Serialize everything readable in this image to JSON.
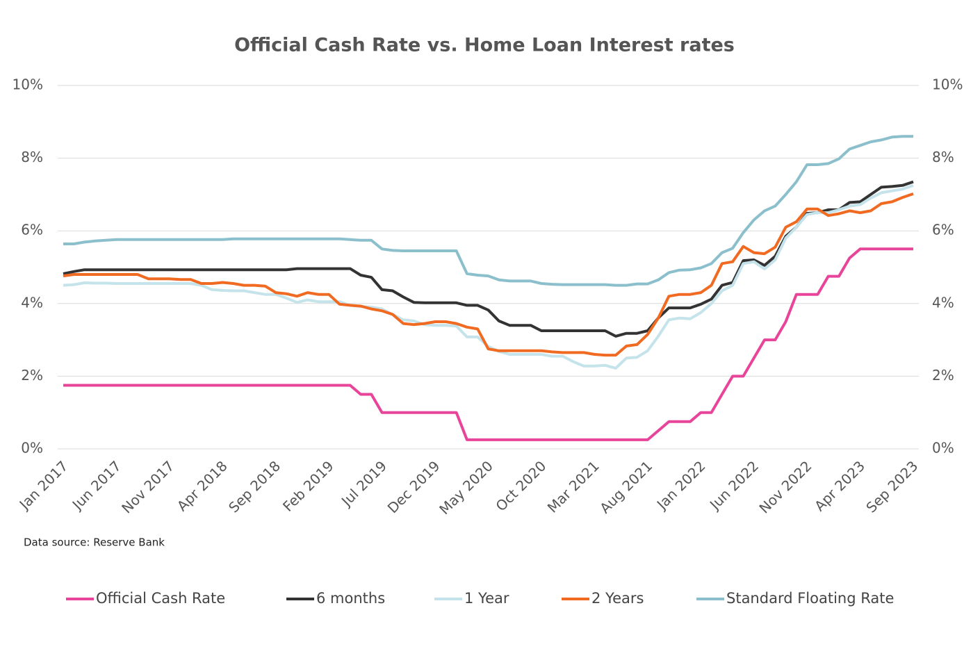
{
  "chart_data": {
    "type": "line",
    "title": "Official Cash Rate vs. Home Loan Interest rates",
    "source": "Data source:  Reserve Bank",
    "categories": [
      "Jan 2017",
      null,
      null,
      null,
      null,
      "Jun 2017",
      null,
      null,
      null,
      null,
      "Nov 2017",
      null,
      null,
      null,
      null,
      "Apr 2018",
      null,
      null,
      null,
      null,
      "Sep 2018",
      null,
      null,
      null,
      null,
      "Feb 2019",
      null,
      null,
      null,
      null,
      "Jul 2019",
      null,
      null,
      null,
      null,
      "Dec 2019",
      null,
      null,
      null,
      null,
      "May 2020",
      null,
      null,
      null,
      null,
      "Oct 2020",
      null,
      null,
      null,
      null,
      "Mar 2021",
      null,
      null,
      null,
      null,
      "Aug 2021",
      null,
      null,
      null,
      null,
      "Jan 2022",
      null,
      null,
      null,
      null,
      "Jun 2022",
      null,
      null,
      null,
      null,
      "Nov 2022",
      null,
      null,
      null,
      null,
      "Apr 2023",
      null,
      null,
      null,
      null,
      "Sep 2023"
    ],
    "series": [
      {
        "name": "Official Cash Rate",
        "color": "#e8459a",
        "values": [
          1.75,
          1.75,
          1.75,
          1.75,
          1.75,
          1.75,
          1.75,
          1.75,
          1.75,
          1.75,
          1.75,
          1.75,
          1.75,
          1.75,
          1.75,
          1.75,
          1.75,
          1.75,
          1.75,
          1.75,
          1.75,
          1.75,
          1.75,
          1.75,
          1.75,
          1.75,
          1.75,
          1.75,
          1.5,
          1.5,
          1,
          1,
          1,
          1,
          1,
          1,
          1,
          1,
          0.25,
          0.25,
          0.25,
          0.25,
          0.25,
          0.25,
          0.25,
          0.25,
          0.25,
          0.25,
          0.25,
          0.25,
          0.25,
          0.25,
          0.25,
          0.25,
          0.25,
          0.25,
          0.5,
          0.75,
          0.75,
          0.75,
          1,
          1,
          1.5,
          2,
          2,
          2.5,
          3,
          3,
          3.5,
          4.25,
          4.25,
          4.25,
          4.75,
          4.75,
          5.25,
          5.5,
          5.5,
          5.5,
          5.5,
          5.5,
          5.5
        ]
      },
      {
        "name": "6 months",
        "color": "#333333",
        "values": [
          4.82,
          4.88,
          4.93,
          4.93,
          4.93,
          4.93,
          4.93,
          4.93,
          4.93,
          4.93,
          4.93,
          4.93,
          4.93,
          4.93,
          4.93,
          4.93,
          4.93,
          4.93,
          4.93,
          4.93,
          4.93,
          4.93,
          4.96,
          4.96,
          4.96,
          4.96,
          4.96,
          4.96,
          4.78,
          4.72,
          4.38,
          4.35,
          4.18,
          4.03,
          4.02,
          4.02,
          4.02,
          4.02,
          3.95,
          3.95,
          3.82,
          3.52,
          3.4,
          3.4,
          3.4,
          3.25,
          3.25,
          3.25,
          3.25,
          3.25,
          3.25,
          3.25,
          3.1,
          3.18,
          3.18,
          3.25,
          3.6,
          3.88,
          3.88,
          3.88,
          3.98,
          4.12,
          4.5,
          4.58,
          5.18,
          5.2,
          5.05,
          5.3,
          5.85,
          6.1,
          6.48,
          6.5,
          6.58,
          6.58,
          6.78,
          6.8,
          7.0,
          7.2,
          7.22,
          7.25,
          7.35
        ]
      },
      {
        "name": "1 Year",
        "color": "#c5e3ea",
        "values": [
          4.5,
          4.52,
          4.57,
          4.56,
          4.56,
          4.55,
          4.55,
          4.55,
          4.55,
          4.55,
          4.55,
          4.55,
          4.55,
          4.5,
          4.38,
          4.36,
          4.35,
          4.35,
          4.3,
          4.25,
          4.25,
          4.15,
          4.03,
          4.1,
          4.05,
          4.05,
          4.05,
          3.95,
          3.92,
          3.9,
          3.85,
          3.7,
          3.55,
          3.52,
          3.42,
          3.4,
          3.4,
          3.38,
          3.08,
          3.08,
          2.82,
          2.68,
          2.6,
          2.6,
          2.6,
          2.6,
          2.55,
          2.55,
          2.4,
          2.28,
          2.28,
          2.3,
          2.22,
          2.5,
          2.52,
          2.7,
          3.1,
          3.55,
          3.6,
          3.58,
          3.75,
          4.0,
          4.35,
          4.5,
          5.1,
          5.15,
          4.95,
          5.2,
          5.8,
          6.1,
          6.45,
          6.5,
          6.5,
          6.58,
          6.68,
          6.72,
          6.9,
          7.05,
          7.1,
          7.15,
          7.25
        ]
      },
      {
        "name": "2 Years",
        "color": "#f06a22",
        "values": [
          4.76,
          4.8,
          4.8,
          4.8,
          4.8,
          4.8,
          4.8,
          4.8,
          4.68,
          4.68,
          4.68,
          4.66,
          4.66,
          4.55,
          4.55,
          4.58,
          4.55,
          4.5,
          4.5,
          4.48,
          4.3,
          4.27,
          4.2,
          4.3,
          4.25,
          4.25,
          3.98,
          3.95,
          3.93,
          3.85,
          3.8,
          3.7,
          3.45,
          3.42,
          3.45,
          3.5,
          3.5,
          3.45,
          3.35,
          3.3,
          2.75,
          2.7,
          2.7,
          2.7,
          2.7,
          2.7,
          2.67,
          2.65,
          2.65,
          2.65,
          2.6,
          2.58,
          2.58,
          2.83,
          2.87,
          3.15,
          3.6,
          4.2,
          4.25,
          4.25,
          4.3,
          4.5,
          5.1,
          5.15,
          5.57,
          5.4,
          5.37,
          5.55,
          6.1,
          6.25,
          6.6,
          6.6,
          6.42,
          6.47,
          6.55,
          6.5,
          6.55,
          6.75,
          6.8,
          6.92,
          7.02
        ]
      },
      {
        "name": "Standard Floating Rate",
        "color": "#8bbfcc",
        "values": [
          5.64,
          5.64,
          5.69,
          5.72,
          5.74,
          5.76,
          5.76,
          5.76,
          5.76,
          5.76,
          5.76,
          5.76,
          5.76,
          5.76,
          5.76,
          5.76,
          5.78,
          5.78,
          5.78,
          5.78,
          5.78,
          5.78,
          5.78,
          5.78,
          5.78,
          5.78,
          5.78,
          5.76,
          5.74,
          5.74,
          5.5,
          5.46,
          5.45,
          5.45,
          5.45,
          5.45,
          5.45,
          5.45,
          4.82,
          4.78,
          4.76,
          4.65,
          4.62,
          4.62,
          4.62,
          4.55,
          4.53,
          4.52,
          4.52,
          4.52,
          4.52,
          4.52,
          4.5,
          4.5,
          4.54,
          4.54,
          4.65,
          4.85,
          4.92,
          4.93,
          4.98,
          5.1,
          5.4,
          5.52,
          5.95,
          6.3,
          6.55,
          6.68,
          7.0,
          7.35,
          7.82,
          7.82,
          7.85,
          7.98,
          8.25,
          8.35,
          8.45,
          8.5,
          8.58,
          8.6,
          8.6
        ]
      }
    ],
    "ylim": [
      0,
      10
    ],
    "yticks": [
      {
        "value": 0,
        "label": "0%"
      },
      {
        "value": 2,
        "label": "2%"
      },
      {
        "value": 4,
        "label": "4%"
      },
      {
        "value": 6,
        "label": "6%"
      },
      {
        "value": 8,
        "label": "8%"
      },
      {
        "value": 10,
        "label": "10%"
      }
    ],
    "y2lim": [
      0,
      10
    ],
    "y2ticks": [
      {
        "value": 0,
        "label": "0%"
      },
      {
        "value": 2,
        "label": "2%"
      },
      {
        "value": 4,
        "label": "4%"
      },
      {
        "value": 6,
        "label": "6%"
      },
      {
        "value": 8,
        "label": "8%"
      },
      {
        "value": 10,
        "label": "10%"
      }
    ],
    "grid": true,
    "legend": "bottom"
  }
}
